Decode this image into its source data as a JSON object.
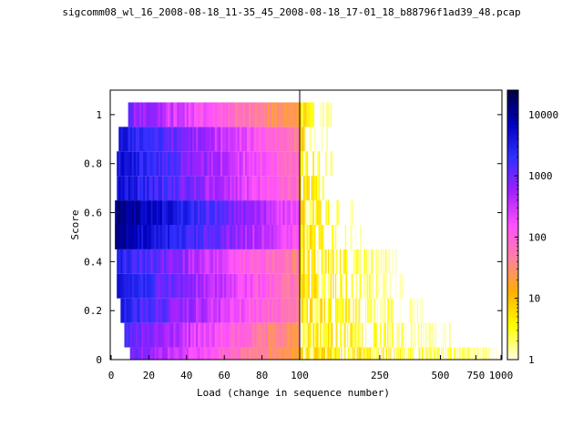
{
  "chart_data": {
    "type": "heatmap",
    "title": "sigcomm08_wl_16_2008-08-18_11-35_45_2008-08-18_17-01_18_b88796f1ad39_48.pcap",
    "xlabel": "Load (change in sequence number)",
    "ylabel": "Score",
    "x_segments": [
      {
        "scale": "linear",
        "range": [
          0,
          100
        ],
        "ticks": [
          0,
          20,
          40,
          60,
          80,
          100
        ]
      },
      {
        "scale": "log",
        "range": [
          100,
          1000
        ],
        "ticks": [
          100,
          250,
          500,
          750,
          1000
        ]
      }
    ],
    "tick_labels": {
      "x": [
        "0",
        "20",
        "40",
        "60",
        "80",
        "100",
        "250",
        "500",
        "750",
        "1000"
      ],
      "y": [
        "0",
        "0.2",
        "0.4",
        "0.6",
        "0.8",
        "1"
      ]
    },
    "ylim": [
      0,
      1.1
    ],
    "y_ticks": [
      0,
      0.2,
      0.4,
      0.6,
      0.8,
      1
    ],
    "score_bins": [
      0,
      0.1,
      0.2,
      0.3,
      0.4,
      0.5,
      0.6,
      0.7,
      0.8,
      0.9,
      1.0
    ],
    "colorbar": {
      "scale": "log",
      "range": [
        1,
        25000
      ],
      "ticks": [
        1,
        10,
        100,
        1000,
        10000
      ],
      "tick_labels": [
        "1",
        "10",
        "100",
        "1000",
        "10000"
      ],
      "colormap": [
        "#ffffe0",
        "#ffff00",
        "#ffb000",
        "#ff80a0",
        "#ff50ff",
        "#a020ff",
        "#3030ff",
        "#0000c0",
        "#000040"
      ]
    },
    "rows": [
      {
        "score": 0.0,
        "linear_start": 10,
        "linear_peak_count": 900,
        "log_max": 950
      },
      {
        "score": 0.1,
        "linear_start": 7,
        "linear_peak_count": 1500,
        "log_max": 560
      },
      {
        "score": 0.2,
        "linear_start": 5,
        "linear_peak_count": 3000,
        "log_max": 420
      },
      {
        "score": 0.3,
        "linear_start": 3,
        "linear_peak_count": 4000,
        "log_max": 330
      },
      {
        "score": 0.4,
        "linear_start": 3,
        "linear_peak_count": 3000,
        "log_max": 330
      },
      {
        "score": 0.5,
        "linear_start": 2,
        "linear_peak_count": 12000,
        "log_max": 210
      },
      {
        "score": 0.6,
        "linear_start": 2,
        "linear_peak_count": 15000,
        "log_max": 190
      },
      {
        "score": 0.7,
        "linear_start": 3,
        "linear_peak_count": 5000,
        "log_max": 160
      },
      {
        "score": 0.8,
        "linear_start": 3,
        "linear_peak_count": 5000,
        "log_max": 150
      },
      {
        "score": 0.9,
        "linear_start": 4,
        "linear_peak_count": 4000,
        "log_max": 140
      },
      {
        "score": 1.0,
        "linear_start": 9,
        "linear_peak_count": 900,
        "log_max": 150
      }
    ]
  }
}
